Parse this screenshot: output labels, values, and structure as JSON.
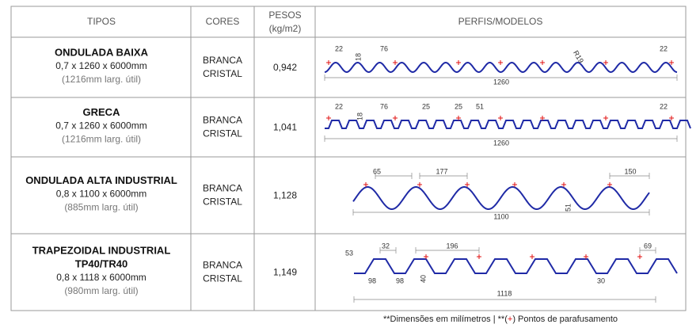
{
  "header": {
    "tipos": "TIPOS",
    "cores": "CORES",
    "pesos": "PESOS",
    "pesos_unit": "(kg/m2)",
    "perfis": "PERFIS/MODELOS"
  },
  "rows": [
    {
      "name": [
        "ONDULADA BAIXA"
      ],
      "size": "0,7 x 1260 x 6000mm",
      "useful": "(1216mm larg. útil)",
      "color": [
        "BRANCA",
        "CRISTAL"
      ],
      "weight": "0,942",
      "dims": [
        "22",
        "18",
        "76",
        "R19",
        "22",
        "1260"
      ]
    },
    {
      "name": [
        "GRECA"
      ],
      "size": "0,7 x 1260 x 6000mm",
      "useful": "(1216mm larg. útil)",
      "color": [
        "BRANCA",
        "CRISTAL"
      ],
      "weight": "1,041",
      "dims": [
        "22",
        "76",
        "25",
        "25",
        "51",
        "18",
        "22",
        "1260"
      ]
    },
    {
      "name": [
        "ONDULADA ALTA INDUSTRIAL"
      ],
      "size": "0,8 x 1100 x 6000mm",
      "useful": "(885mm larg. útil)",
      "color": [
        "BRANCA",
        "CRISTAL"
      ],
      "weight": "1,128",
      "dims": [
        "65",
        "177",
        "150",
        "51",
        "1100"
      ]
    },
    {
      "name": [
        "TRAPEZOIDAL INDUSTRIAL",
        "TP40/TR40"
      ],
      "size": "0,8 x 1118 x 6000mm",
      "useful": "(980mm larg. útil)",
      "color": [
        "BRANCA",
        "CRISTAL"
      ],
      "weight": "1,149",
      "dims": [
        "53",
        "32",
        "196",
        "69",
        "98",
        "98",
        "40",
        "30",
        "1118"
      ]
    }
  ],
  "footer": {
    "note": "**Dimensões em milímetros  |  **(",
    "plus": "+",
    "end": ") Pontos de parafusamento"
  }
}
